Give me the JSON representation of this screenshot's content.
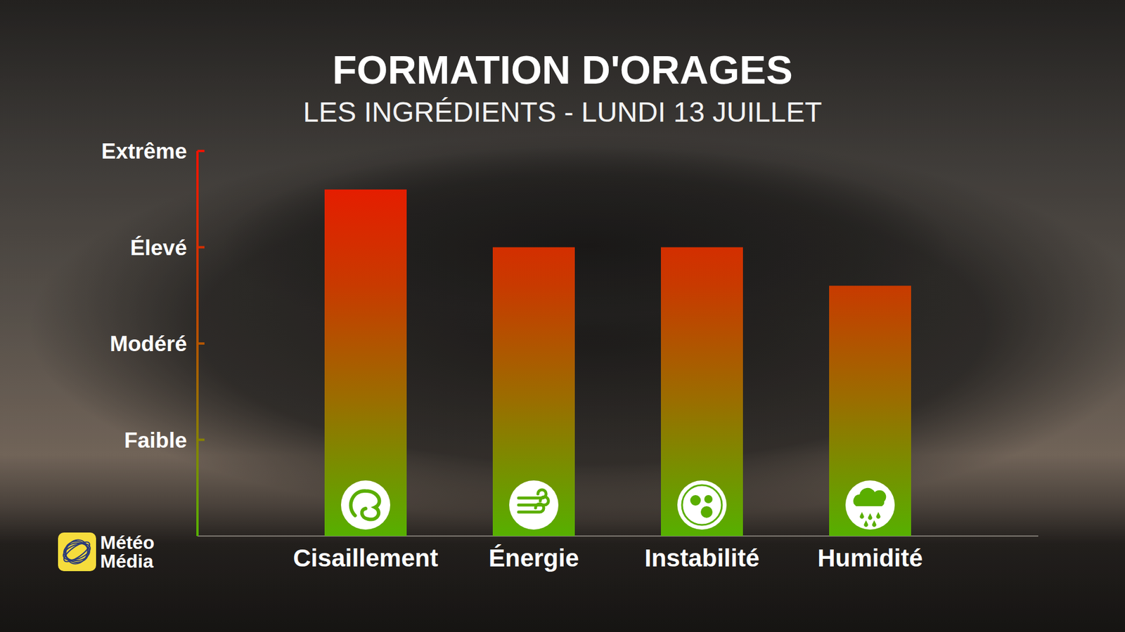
{
  "chart_data": {
    "type": "bar",
    "title": "FORMATION D'ORAGES",
    "subtitle": "LES INGRÉDIENTS - LUNDI 13 JUILLET",
    "categories": [
      "Cisaillement",
      "Énergie",
      "Instabilité",
      "Humidité"
    ],
    "values": [
      3.6,
      3.0,
      3.0,
      2.6
    ],
    "ylim": [
      0,
      4
    ],
    "yticks": [
      {
        "value": 1,
        "label": "Faible"
      },
      {
        "value": 2,
        "label": "Modéré"
      },
      {
        "value": 3,
        "label": "Élevé"
      },
      {
        "value": 4,
        "label": "Extrême"
      }
    ],
    "grid": false,
    "logo": [
      "Météo",
      "Média"
    ]
  }
}
